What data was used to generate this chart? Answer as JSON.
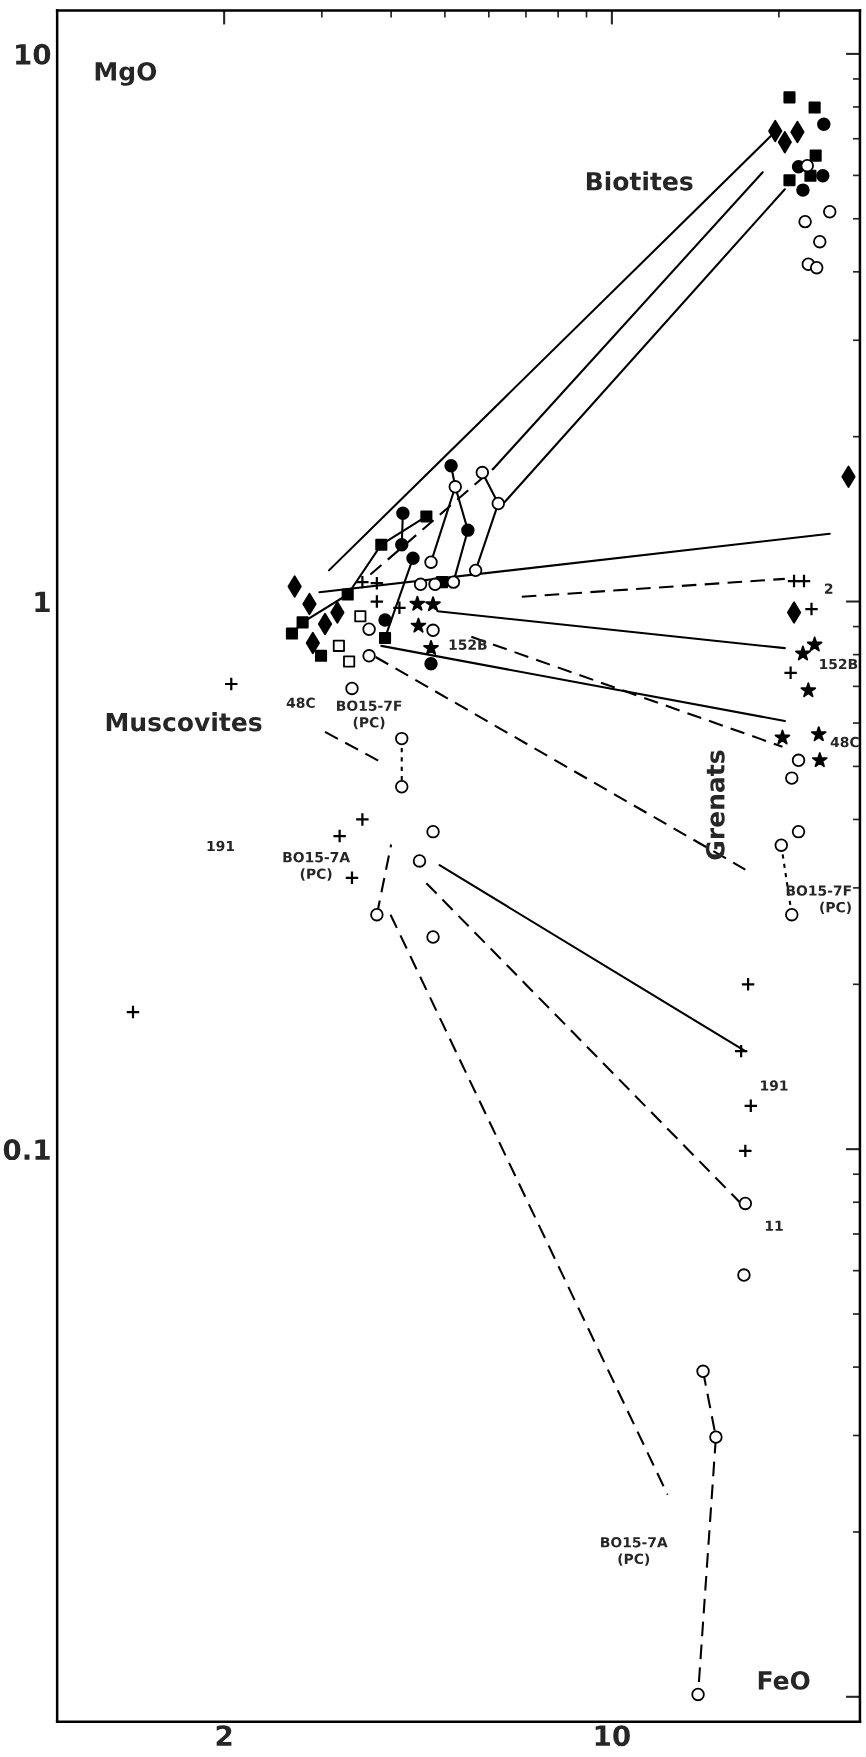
{
  "chart_data": {
    "type": "scatter",
    "xlabel": "FeO",
    "ylabel": "MgO",
    "log": "xy",
    "xlim": [
      1,
      28
    ],
    "ylim": [
      0.009,
      12
    ],
    "xticks": [
      2,
      10
    ],
    "yticks": [
      {
        "value": 0.01,
        "label": null
      },
      {
        "value": 0.1,
        "label": "0.1"
      },
      1,
      10
    ],
    "grid": false,
    "legend": false,
    "annotations": [
      "Biotites",
      "Muscovites",
      "Grenats",
      "48C",
      "BO15-7F\n(PC)",
      "152B",
      "191",
      "BO15-7A\n(PC)",
      "2",
      "152B",
      "48C",
      "BO15-7F\n(PC)",
      "191",
      "11",
      "BO15-7A\n(PC)"
    ],
    "series": [
      {
        "type": "line",
        "line_style": "solid",
        "color": "#000000",
        "x": [
          3.09,
          19.4
        ],
        "values": [
          1.14,
          7.1
        ]
      },
      {
        "type": "line",
        "line_style": "dashed",
        "color": "#000000",
        "x": [
          3.67,
          6.12
        ],
        "values": [
          1.12,
          1.75
        ]
      },
      {
        "type": "line",
        "line_style": "solid",
        "color": "#000000",
        "x": [
          6.12,
          18.7
        ],
        "values": [
          1.75,
          6.08
        ]
      },
      {
        "type": "line",
        "line_style": "solid",
        "color": "#000000",
        "x": [
          6.41,
          20.5
        ],
        "values": [
          1.52,
          5.66
        ]
      },
      {
        "type": "line",
        "line_style": "solid",
        "color": "#000000",
        "x": [
          2.97,
          24.7
        ],
        "values": [
          1.04,
          1.33
        ]
      },
      {
        "type": "line",
        "line_style": "dashed",
        "color": "#000000",
        "x": [
          6.88,
          20.5
        ],
        "values": [
          1.02,
          1.1
        ]
      },
      {
        "type": "line",
        "line_style": "solid",
        "color": "#000000",
        "x": [
          4.85,
          20.5
        ],
        "values": [
          0.96,
          0.822
        ]
      },
      {
        "type": "line",
        "line_style": "solid",
        "color": "#000000",
        "x": [
          3.84,
          20.5
        ],
        "values": [
          0.83,
          0.605
        ]
      },
      {
        "type": "line",
        "line_style": "dashed",
        "color": "#000000",
        "x": [
          5.58,
          20.3
        ],
        "values": [
          0.862,
          0.543
        ]
      },
      {
        "type": "line",
        "line_style": "dashed",
        "color": "#000000",
        "x": [
          3.75,
          17.4
        ],
        "values": [
          0.792,
          0.324
        ]
      },
      {
        "type": "line",
        "line_style": "solid",
        "color": "#000000",
        "x": [
          4.89,
          17.4
        ],
        "values": [
          0.33,
          0.151
        ]
      },
      {
        "type": "line",
        "line_style": "dashed",
        "color": "#000000",
        "x": [
          4.63,
          17.0
        ],
        "values": [
          0.306,
          0.08
        ]
      },
      {
        "type": "line",
        "line_style": "dashed",
        "color": "#000000",
        "x": [
          3.99,
          12.6
        ],
        "values": [
          0.268,
          0.0234
        ]
      },
      {
        "type": "line",
        "line_style": "dashed",
        "color": "#000000",
        "x": [
          3.04,
          3.88
        ],
        "values": [
          0.578,
          0.506
        ]
      },
      {
        "type": "line",
        "line_style": "dotted",
        "color": "#000000",
        "x": [
          4.18,
          4.18
        ],
        "values": [
          0.562,
          0.459
        ]
      },
      {
        "type": "line",
        "line_style": "dashed",
        "color": "#000000",
        "x": [
          3.77,
          4.0
        ],
        "values": [
          0.268,
          0.36
        ]
      },
      {
        "type": "line",
        "line_style": "dotted",
        "color": "#000000",
        "x": [
          20.2,
          21.1
        ],
        "values": [
          0.359,
          0.268
        ]
      },
      {
        "type": "line",
        "line_style": "dashed",
        "color": "#000000",
        "x": [
          14.6,
          15.4,
          14.3
        ],
        "values": [
          0.0393,
          0.0298,
          0.0101
        ]
      },
      {
        "type": "line",
        "line_style": "solid",
        "color": "#000000",
        "x": [
          3.34,
          3.84,
          4.63
        ],
        "values": [
          1.03,
          1.27,
          1.43
        ]
      },
      {
        "type": "line",
        "line_style": "solid",
        "color": "#000000",
        "x": [
          4.2,
          4.18
        ],
        "values": [
          1.45,
          1.27
        ]
      },
      {
        "type": "line",
        "line_style": "solid",
        "color": "#000000",
        "x": [
          5.13,
          5.22,
          4.72
        ],
        "values": [
          1.77,
          1.62,
          1.18
        ]
      },
      {
        "type": "line",
        "line_style": "solid",
        "color": "#000000",
        "x": [
          5.84,
          6.24,
          5.68
        ],
        "values": [
          1.72,
          1.51,
          1.14
        ]
      },
      {
        "type": "line",
        "line_style": "solid",
        "color": "#000000",
        "x": [
          5.22,
          5.5,
          5.18
        ],
        "values": [
          1.62,
          1.35,
          1.085
        ]
      },
      {
        "type": "line",
        "line_style": "solid",
        "color": "#000000",
        "x": [
          4.38,
          3.9
        ],
        "values": [
          1.2,
          0.858
        ]
      },
      {
        "type": "line",
        "line_style": "solid",
        "color": "#000000",
        "x": [
          2.65,
          2.77,
          3.34
        ],
        "values": [
          0.874,
          0.916,
          1.03
        ]
      },
      {
        "marker": "diamond",
        "color": "#000000",
        "x": [
          2.68,
          2.85,
          2.89,
          3.04,
          3.2,
          19.7,
          20.5,
          21.6,
          26.7,
          21.3
        ],
        "values": [
          1.065,
          0.99,
          0.84,
          0.91,
          0.955,
          7.23,
          6.9,
          7.2,
          1.69,
          0.955
        ]
      },
      {
        "marker": "square",
        "color": "#000000",
        "x": [
          2.65,
          2.77,
          2.99,
          3.34,
          3.84,
          4.63,
          4.94,
          3.9,
          20.9,
          23.2,
          23.3,
          20.9,
          22.8
        ],
        "values": [
          0.874,
          0.916,
          0.796,
          1.03,
          1.27,
          1.43,
          1.085,
          0.858,
          8.33,
          7.98,
          6.52,
          5.88,
          5.99
        ]
      },
      {
        "marker": "circle",
        "color": "#000000",
        "x": [
          5.13,
          4.2,
          4.18,
          4.38,
          5.5,
          3.9,
          4.72,
          24.1,
          21.7,
          24.0,
          22.1
        ],
        "values": [
          1.77,
          1.45,
          1.27,
          1.2,
          1.35,
          0.925,
          0.77,
          7.44,
          6.22,
          5.99,
          5.64
        ]
      },
      {
        "marker": "circle",
        "color": "#ffffff",
        "x": [
          4.72,
          5.22,
          5.84,
          6.24,
          5.68,
          22.5,
          24.7,
          22.3,
          23.7,
          22.6,
          23.4
        ],
        "values": [
          1.18,
          1.62,
          1.72,
          1.51,
          1.14,
          6.25,
          5.15,
          4.94,
          4.54,
          4.13,
          4.07
        ]
      },
      {
        "marker": "cross",
        "color": "#000000",
        "x": [
          3.55,
          3.77,
          3.77,
          4.14,
          21.3,
          22.2,
          22.9,
          21.0
        ],
        "values": [
          1.085,
          1.08,
          1.0,
          0.974,
          1.09,
          1.09,
          0.969,
          0.741
        ]
      },
      {
        "marker": "star",
        "color": "#000000",
        "x": [
          4.46,
          4.76,
          4.72,
          4.48,
          22.1,
          23.2,
          22.6,
          20.3,
          23.6,
          23.7
        ],
        "values": [
          0.99,
          0.988,
          0.822,
          0.903,
          0.803,
          0.834,
          0.688,
          0.564,
          0.572,
          0.513
        ]
      },
      {
        "marker": "circle",
        "color": "#ffffff",
        "x": [
          4.52,
          4.8,
          5.18,
          3.65,
          3.65,
          3.4,
          4.76,
          21.7,
          21.1,
          20.2,
          21.1,
          21.7,
          4.18,
          4.18,
          3.77,
          14.6,
          15.4,
          14.3
        ],
        "values": [
          1.075,
          1.075,
          1.085,
          0.89,
          0.796,
          0.694,
          0.886,
          0.513,
          0.476,
          0.359,
          0.268,
          0.38,
          0.562,
          0.459,
          0.268,
          0.0393,
          0.0298,
          0.0101
        ]
      },
      {
        "marker": "circle",
        "color": "#ffffff",
        "x": [
          4.76,
          4.5,
          4.76,
          17.4,
          17.3
        ],
        "values": [
          0.38,
          0.336,
          0.244,
          0.0796,
          0.0589
        ]
      },
      {
        "marker": "cross",
        "color": "#000000",
        "x": [
          1.37,
          2.06,
          3.23,
          3.55,
          3.4,
          17.6,
          17.1,
          17.8,
          17.4
        ],
        "values": [
          0.178,
          0.707,
          0.373,
          0.4,
          0.313,
          0.2,
          0.151,
          0.12,
          0.0993
        ]
      },
      {
        "marker": "square",
        "color": "#ffffff",
        "x": [
          3.52,
          3.22,
          3.36
        ],
        "values": [
          0.94,
          0.83,
          0.777
        ]
      }
    ]
  }
}
